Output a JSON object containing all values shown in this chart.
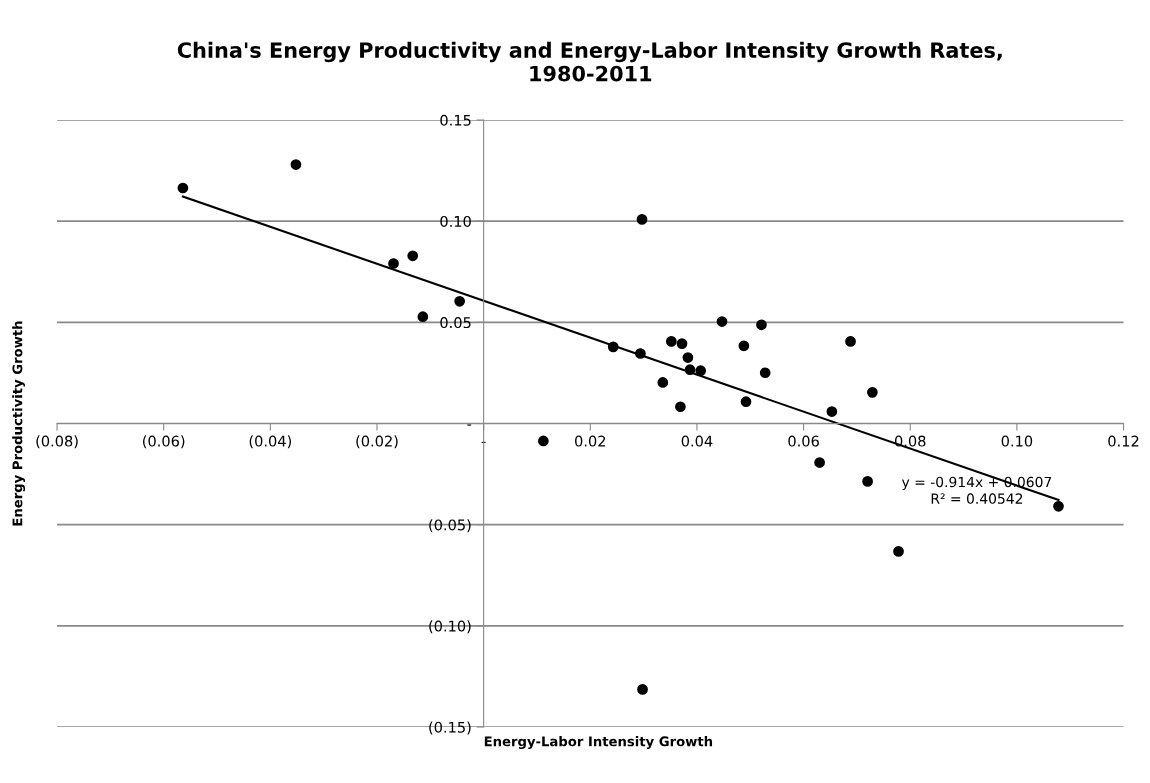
{
  "chart_data": {
    "type": "scatter",
    "title": "China's Energy Productivity and Energy-Labor Intensity Growth Rates,\n1980-2011",
    "xlabel": "Energy-Labor Intensity Growth",
    "ylabel": "Energy Productivity Growth",
    "series": [
      {
        "color": "#000000",
        "marker": "circle",
        "x": [
          -0.0564,
          -0.0352,
          -0.0169,
          -0.0133,
          -0.0114,
          -0.0045,
          0.0112,
          0.0297,
          0.0243,
          0.0294,
          0.0352,
          0.0372,
          0.0336,
          0.0369,
          0.0383,
          0.0387,
          0.0407,
          0.0447,
          0.0488,
          0.0521,
          0.0492,
          0.0528,
          0.0653,
          0.0688,
          0.0729,
          0.063,
          0.072,
          0.0778,
          0.1078,
          0.0298
        ],
        "values": [
          0.1164,
          0.128,
          0.0791,
          0.0829,
          0.0528,
          0.0604,
          -0.0086,
          0.1009,
          0.0379,
          0.0346,
          0.0406,
          0.0395,
          0.0203,
          0.0083,
          0.0326,
          0.0266,
          0.0261,
          0.0504,
          0.0384,
          0.0488,
          0.0108,
          0.0251,
          0.0059,
          0.0406,
          0.0154,
          -0.0193,
          -0.0286,
          -0.0632,
          -0.0409,
          -0.1314
        ]
      },
      {
        "type": "line",
        "color": "#000000",
        "marker": "none",
        "line_style": "solid",
        "x": [
          -0.0564,
          0.1078
        ],
        "values": [
          0.1122,
          -0.0378
        ]
      }
    ],
    "annotations": [
      "y = -0.914x + 0.0607\nR² = 0.40542"
    ],
    "xlim": [
      -0.08,
      0.12
    ],
    "ylim": [
      -0.15,
      0.15
    ],
    "xticks": [
      {
        "value": -0.08,
        "label": "(0.08)"
      },
      {
        "value": -0.06,
        "label": "(0.06)"
      },
      {
        "value": -0.04,
        "label": "(0.04)"
      },
      {
        "value": -0.02,
        "label": "(0.02)"
      },
      {
        "value": 0,
        "label": "-"
      },
      {
        "value": 0.02,
        "label": "0.02"
      },
      {
        "value": 0.04,
        "label": "0.04"
      },
      {
        "value": 0.06,
        "label": "0.06"
      },
      {
        "value": 0.08,
        "label": "0.08"
      },
      {
        "value": 0.1,
        "label": "0.10"
      },
      {
        "value": 0.12,
        "label": "0.12"
      }
    ],
    "yticks": [
      {
        "value": -0.15,
        "label": "(0.15)"
      },
      {
        "value": -0.1,
        "label": "(0.10)"
      },
      {
        "value": -0.05,
        "label": "(0.05)"
      },
      {
        "value": 0,
        "label": "-"
      },
      {
        "value": 0.05,
        "label": "0.05"
      },
      {
        "value": 0.1,
        "label": "0.10"
      },
      {
        "value": 0.15,
        "label": "0.15"
      }
    ],
    "grid": "y",
    "legend": false
  }
}
